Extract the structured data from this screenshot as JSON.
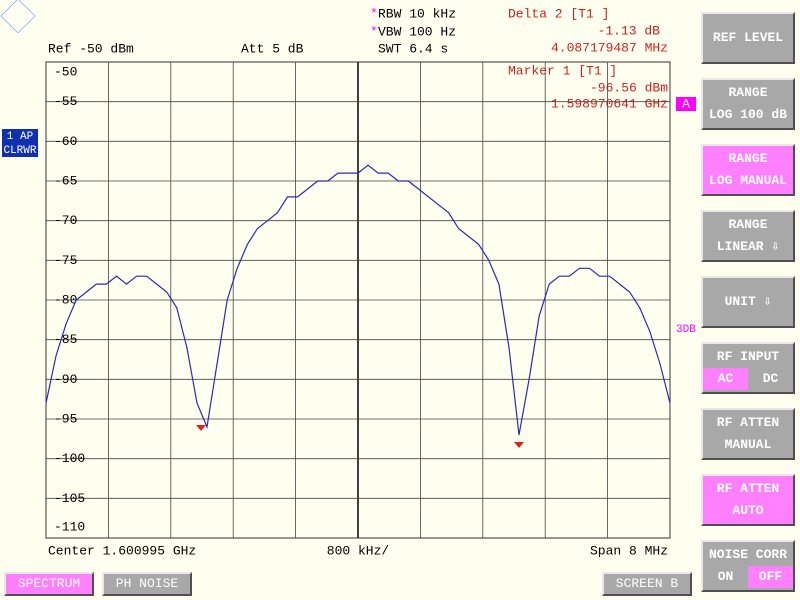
{
  "header": {
    "ref": "Ref -50 dBm",
    "att": "Att  5 dB",
    "rbw": "RBW 10 kHz",
    "vbw": "VBW 100 Hz",
    "swt": "SWT 6.4 s",
    "delta_title": "Delta 2 [T1 ]",
    "delta_level": "-1.13 dB",
    "delta_freq": "4.087179487 MHz",
    "marker_title": "Marker 1 [T1 ]",
    "marker_level": "-96.56 dBm",
    "marker_freq": "1.598970641 GHz"
  },
  "side_labels": {
    "trace_mode": "1 AP",
    "detector": "CLRWR",
    "trace_a": "A",
    "range_flag": "3DB"
  },
  "footer": {
    "center": "Center 1.600995 GHz",
    "div": "800 kHz/",
    "span": "Span 8 MHz"
  },
  "softkeys": [
    {
      "lines": [
        "REF LEVEL"
      ]
    },
    {
      "lines": [
        "RANGE",
        "LOG 100 dB"
      ]
    },
    {
      "lines": [
        "RANGE",
        "LOG MANUAL"
      ]
    },
    {
      "lines": [
        "RANGE",
        "LINEAR ⇩"
      ]
    },
    {
      "lines": [
        "UNIT ⇩"
      ]
    },
    {
      "lines": [
        "RF INPUT"
      ],
      "options": [
        "AC",
        "DC"
      ]
    },
    {
      "lines": [
        "RF ATTEN",
        "MANUAL"
      ]
    },
    {
      "lines": [
        "RF ATTEN",
        "AUTO"
      ]
    },
    {
      "lines": [
        "NOISE CORR"
      ],
      "options": [
        "ON",
        "OFF"
      ]
    }
  ],
  "tabs": [
    "SPECTRUM",
    "PH NOISE",
    "SCREEN B"
  ],
  "chart_data": {
    "type": "line",
    "color": "#2a2ab8",
    "values": [
      -93,
      -87,
      -83,
      -80,
      -79,
      -78,
      -78,
      -77,
      -78,
      -77,
      -77,
      -78,
      -79,
      -81,
      -86,
      -93,
      -96,
      -88,
      -80,
      -76,
      -73,
      -71,
      -70,
      -69,
      -67,
      -67,
      -66,
      -65,
      -65,
      -64,
      -64,
      -64,
      -63,
      -64,
      -64,
      -65,
      -65,
      -66,
      -67,
      -68,
      -69,
      -71,
      -72,
      -73,
      -75,
      -78,
      -86,
      -97,
      -90,
      -82,
      -78,
      -77,
      -77,
      -76,
      -76,
      -77,
      -77,
      -78,
      -79,
      -81,
      -84,
      -88,
      -93
    ],
    "ylim": [
      -110,
      -50
    ],
    "yticks": [
      -50,
      -55,
      -60,
      -65,
      -70,
      -75,
      -80,
      -85,
      -90,
      -95,
      -100,
      -105,
      -110
    ],
    "grid": true
  }
}
